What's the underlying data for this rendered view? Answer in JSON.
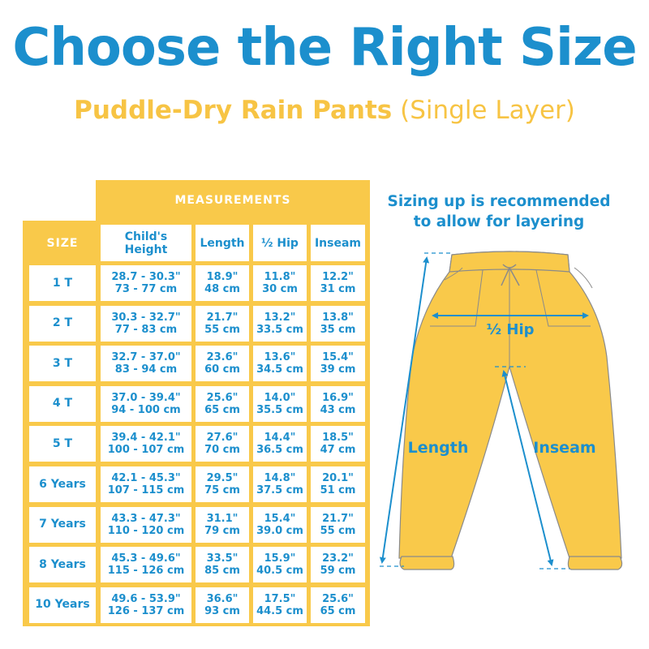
{
  "title": "Choose the Right Size",
  "subtitle": {
    "product": "Puddle-Dry Rain Pants",
    "variant": "(Single Layer)"
  },
  "colors": {
    "blue": "#1c8fcd",
    "yellow": "#f9c94a",
    "subtitle_yellow": "#f7c444"
  },
  "table": {
    "group_header": "MEASUREMENTS",
    "headers": [
      "SIZE",
      "Child's Height",
      "Length",
      "½ Hip",
      "Inseam"
    ],
    "rows": [
      {
        "size": "1 T",
        "height_in": "28.7 - 30.3\"",
        "height_cm": "73 - 77 cm",
        "length_in": "18.9\"",
        "length_cm": "48 cm",
        "hip_in": "11.8\"",
        "hip_cm": "30 cm",
        "inseam_in": "12.2\"",
        "inseam_cm": "31 cm"
      },
      {
        "size": "2 T",
        "height_in": "30.3 - 32.7\"",
        "height_cm": "77 - 83 cm",
        "length_in": "21.7\"",
        "length_cm": "55 cm",
        "hip_in": "13.2\"",
        "hip_cm": "33.5 cm",
        "inseam_in": "13.8\"",
        "inseam_cm": "35 cm"
      },
      {
        "size": "3 T",
        "height_in": "32.7 - 37.0\"",
        "height_cm": "83 - 94 cm",
        "length_in": "23.6\"",
        "length_cm": "60 cm",
        "hip_in": "13.6\"",
        "hip_cm": "34.5 cm",
        "inseam_in": "15.4\"",
        "inseam_cm": "39 cm"
      },
      {
        "size": "4 T",
        "height_in": "37.0 - 39.4\"",
        "height_cm": "94 - 100 cm",
        "length_in": "25.6\"",
        "length_cm": "65 cm",
        "hip_in": "14.0\"",
        "hip_cm": "35.5 cm",
        "inseam_in": "16.9\"",
        "inseam_cm": "43 cm"
      },
      {
        "size": "5 T",
        "height_in": "39.4 - 42.1\"",
        "height_cm": "100 - 107 cm",
        "length_in": "27.6\"",
        "length_cm": "70 cm",
        "hip_in": "14.4\"",
        "hip_cm": "36.5 cm",
        "inseam_in": "18.5\"",
        "inseam_cm": "47 cm"
      },
      {
        "size": "6 Years",
        "height_in": "42.1 - 45.3\"",
        "height_cm": "107 - 115 cm",
        "length_in": "29.5\"",
        "length_cm": "75 cm",
        "hip_in": "14.8\"",
        "hip_cm": "37.5 cm",
        "inseam_in": "20.1\"",
        "inseam_cm": "51 cm"
      },
      {
        "size": "7 Years",
        "height_in": "43.3 - 47.3\"",
        "height_cm": "110 - 120 cm",
        "length_in": "31.1\"",
        "length_cm": "79 cm",
        "hip_in": "15.4\"",
        "hip_cm": "39.0 cm",
        "inseam_in": "21.7\"",
        "inseam_cm": "55 cm"
      },
      {
        "size": "8 Years",
        "height_in": "45.3 - 49.6\"",
        "height_cm": "115 - 126 cm",
        "length_in": "33.5\"",
        "length_cm": "85 cm",
        "hip_in": "15.9\"",
        "hip_cm": "40.5 cm",
        "inseam_in": "23.2\"",
        "inseam_cm": "59 cm"
      },
      {
        "size": "10 Years",
        "height_in": "49.6 - 53.9\"",
        "height_cm": "126 - 137 cm",
        "length_in": "36.6\"",
        "length_cm": "93 cm",
        "hip_in": "17.5\"",
        "hip_cm": "44.5 cm",
        "inseam_in": "25.6\"",
        "inseam_cm": "65 cm"
      }
    ]
  },
  "diagram": {
    "note_line1": "Sizing up is recommended",
    "note_line2": "to allow for layering",
    "hip_label": "½ Hip",
    "length_label": "Length",
    "inseam_label": "Inseam"
  }
}
